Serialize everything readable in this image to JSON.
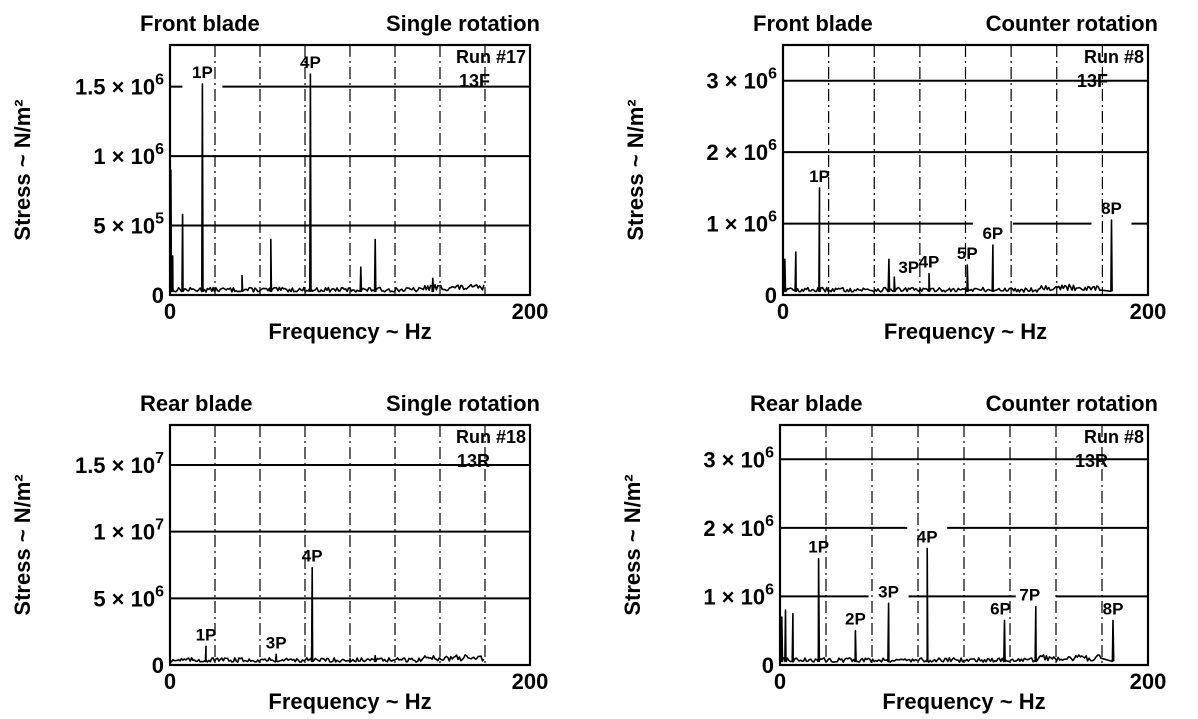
{
  "chart_data": [
    {
      "type": "line",
      "title": "Front blade",
      "subtitle": "Single rotation",
      "run": "Run #17",
      "gauge": "13F",
      "xlabel": "Frequency ~ Hz",
      "ylabel": "Stress ~ N/m²",
      "xlim": [
        0,
        200
      ],
      "ylim": [
        0,
        1800000
      ],
      "x_ticks": [
        {
          "value": 0,
          "label": "0"
        },
        {
          "value": 200,
          "label": "200"
        }
      ],
      "y_ticks": [
        {
          "value": 0,
          "base": "0",
          "exp": ""
        },
        {
          "value": 500000,
          "base": "5 × 10",
          "exp": "5"
        },
        {
          "value": 1000000,
          "base": "1 × 10",
          "exp": "6"
        },
        {
          "value": 1500000,
          "base": "1.5 × 10",
          "exp": "6"
        }
      ],
      "grid": true,
      "peaks": [
        {
          "x": 0.5,
          "y": 900000,
          "label": ""
        },
        {
          "x": 1.5,
          "y": 280000,
          "label": ""
        },
        {
          "x": 7,
          "y": 580000,
          "label": ""
        },
        {
          "x": 18,
          "y": 1520000,
          "label": "1P"
        },
        {
          "x": 40,
          "y": 140000,
          "label": ""
        },
        {
          "x": 56,
          "y": 400000,
          "label": ""
        },
        {
          "x": 78,
          "y": 1590000,
          "label": "4P"
        },
        {
          "x": 106,
          "y": 200000,
          "label": ""
        },
        {
          "x": 114,
          "y": 400000,
          "label": ""
        },
        {
          "x": 146,
          "y": 120000,
          "label": ""
        }
      ]
    },
    {
      "type": "line",
      "title": "Front blade",
      "subtitle": "Counter rotation",
      "run": "Run #8",
      "gauge": "13F",
      "xlabel": "Frequency ~ Hz",
      "ylabel": "Stress ~ N/m²",
      "xlim": [
        0,
        200
      ],
      "ylim": [
        0,
        3500000
      ],
      "x_ticks": [
        {
          "value": 0,
          "label": "0"
        },
        {
          "value": 200,
          "label": "200"
        }
      ],
      "y_ticks": [
        {
          "value": 0,
          "base": "0",
          "exp": ""
        },
        {
          "value": 1000000,
          "base": "1 × 10",
          "exp": "6"
        },
        {
          "value": 2000000,
          "base": "2 × 10",
          "exp": "6"
        },
        {
          "value": 3000000,
          "base": "3 × 10",
          "exp": "6"
        }
      ],
      "grid": true,
      "peaks": [
        {
          "x": 1,
          "y": 500000,
          "label": ""
        },
        {
          "x": 7,
          "y": 600000,
          "label": ""
        },
        {
          "x": 20,
          "y": 1500000,
          "label": "1P"
        },
        {
          "x": 58,
          "y": 500000,
          "label": ""
        },
        {
          "x": 61,
          "y": 250000,
          "label": "3P"
        },
        {
          "x": 80,
          "y": 300000,
          "label": "4P"
        },
        {
          "x": 101,
          "y": 420000,
          "label": "5P"
        },
        {
          "x": 115,
          "y": 700000,
          "label": "6P"
        },
        {
          "x": 180,
          "y": 1050000,
          "label": "8P"
        }
      ]
    },
    {
      "type": "line",
      "title": "Rear blade",
      "subtitle": "Single rotation",
      "run": "Run #18",
      "gauge": "13R",
      "xlabel": "Frequency ~ Hz",
      "ylabel": "Stress ~ N/m²",
      "xlim": [
        0,
        200
      ],
      "ylim": [
        0,
        18000000
      ],
      "x_ticks": [
        {
          "value": 0,
          "label": "0"
        },
        {
          "value": 200,
          "label": "200"
        }
      ],
      "y_ticks": [
        {
          "value": 0,
          "base": "0",
          "exp": ""
        },
        {
          "value": 5000000,
          "base": "5 × 10",
          "exp": "6"
        },
        {
          "value": 10000000,
          "base": "1 × 10",
          "exp": "7"
        },
        {
          "value": 15000000,
          "base": "1.5 × 10",
          "exp": "7"
        }
      ],
      "grid": true,
      "peaks": [
        {
          "x": 20,
          "y": 1400000,
          "label": "1P"
        },
        {
          "x": 59,
          "y": 800000,
          "label": "3P"
        },
        {
          "x": 79,
          "y": 7300000,
          "label": "4P"
        },
        {
          "x": 100,
          "y": 500000,
          "label": ""
        },
        {
          "x": 114,
          "y": 700000,
          "label": ""
        }
      ]
    },
    {
      "type": "line",
      "title": "Rear blade",
      "subtitle": "Counter rotation",
      "run": "Run #8",
      "gauge": "13R",
      "xlabel": "Frequency ~ Hz",
      "ylabel": "Stress ~ N/m²",
      "xlim": [
        0,
        200
      ],
      "ylim": [
        0,
        3500000
      ],
      "x_ticks": [
        {
          "value": 0,
          "label": "0"
        },
        {
          "value": 200,
          "label": "200"
        }
      ],
      "y_ticks": [
        {
          "value": 0,
          "base": "0",
          "exp": ""
        },
        {
          "value": 1000000,
          "base": "1 × 10",
          "exp": "6"
        },
        {
          "value": 2000000,
          "base": "2 × 10",
          "exp": "6"
        },
        {
          "value": 3000000,
          "base": "3 × 10",
          "exp": "6"
        }
      ],
      "grid": true,
      "peaks": [
        {
          "x": 1,
          "y": 700000,
          "label": ""
        },
        {
          "x": 3,
          "y": 800000,
          "label": ""
        },
        {
          "x": 7,
          "y": 750000,
          "label": ""
        },
        {
          "x": 21,
          "y": 1550000,
          "label": "1P"
        },
        {
          "x": 41,
          "y": 500000,
          "label": "2P"
        },
        {
          "x": 59,
          "y": 900000,
          "label": "3P"
        },
        {
          "x": 80,
          "y": 1700000,
          "label": "4P"
        },
        {
          "x": 122,
          "y": 650000,
          "label": "6P"
        },
        {
          "x": 139,
          "y": 850000,
          "label": "7P"
        },
        {
          "x": 181,
          "y": 650000,
          "label": "8P"
        }
      ]
    }
  ]
}
